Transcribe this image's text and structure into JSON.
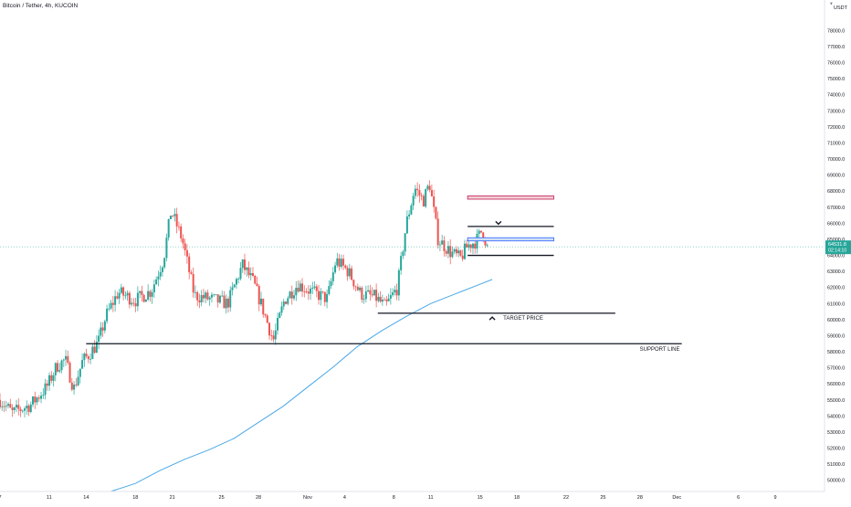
{
  "header": {
    "symbol_title": "Bitcoin / Tether, 4h, KUCOIN"
  },
  "currency": "USDT",
  "price_badge": {
    "price": "64531.8",
    "countdown": "02:14:10",
    "color": "#26a69a"
  },
  "colors": {
    "up_candle": "#26a69a",
    "down_candle": "#ef5350",
    "moving_average": "#4aa8e8",
    "drawing_line": "#131722",
    "resistance_box_fill": "#f4cfd3",
    "resistance_box_border": "#c2185b",
    "entry_box_fill": "#cfe0f6",
    "entry_box_border": "#2962ff"
  },
  "annotations": {
    "target_label": "TARGET PRICE",
    "support_label": "SUPPORT LINE"
  },
  "chart_data": {
    "type": "candlestick",
    "title": "Bitcoin / Tether, 4h, KUCOIN",
    "ylabel": "USDT",
    "ylim": [
      49300,
      79900
    ],
    "y_ticks": [
      50000,
      51000,
      52000,
      53000,
      54000,
      55000,
      56000,
      57000,
      58000,
      59000,
      60000,
      61000,
      62000,
      63000,
      64000,
      65000,
      66000,
      67000,
      68000,
      69000,
      70000,
      71000,
      72000,
      73000,
      74000,
      75000,
      76000,
      77000,
      78000
    ],
    "x_ticks": [
      "7",
      "11",
      "14",
      "18",
      "21",
      "25",
      "28",
      "Nov",
      "4",
      "8",
      "11",
      "15",
      "18",
      "22",
      "25",
      "28",
      "Dec",
      "6",
      "9"
    ],
    "x_tick_days": [
      7,
      11,
      14,
      18,
      21,
      25,
      28,
      32,
      35,
      39,
      42,
      46,
      49,
      53,
      56,
      59,
      62,
      67,
      70
    ],
    "x_range_days": [
      7,
      74
    ],
    "price_series_anchors": [
      {
        "day": 7.0,
        "price": 55000
      },
      {
        "day": 8.0,
        "price": 54200
      },
      {
        "day": 9.5,
        "price": 54700
      },
      {
        "day": 10.8,
        "price": 55800
      },
      {
        "day": 11.6,
        "price": 57100
      },
      {
        "day": 12.3,
        "price": 57500
      },
      {
        "day": 13.0,
        "price": 55700
      },
      {
        "day": 13.7,
        "price": 57400
      },
      {
        "day": 14.2,
        "price": 57800
      },
      {
        "day": 15.0,
        "price": 58600
      },
      {
        "day": 15.6,
        "price": 60200
      },
      {
        "day": 16.6,
        "price": 61700
      },
      {
        "day": 18.0,
        "price": 61200
      },
      {
        "day": 19.3,
        "price": 61800
      },
      {
        "day": 20.3,
        "price": 63800
      },
      {
        "day": 20.9,
        "price": 66800
      },
      {
        "day": 21.8,
        "price": 65000
      },
      {
        "day": 22.8,
        "price": 61500
      },
      {
        "day": 24.0,
        "price": 61300
      },
      {
        "day": 25.5,
        "price": 61000
      },
      {
        "day": 26.7,
        "price": 63400
      },
      {
        "day": 27.6,
        "price": 62300
      },
      {
        "day": 28.3,
        "price": 60800
      },
      {
        "day": 29.2,
        "price": 58700
      },
      {
        "day": 30.1,
        "price": 61200
      },
      {
        "day": 31.2,
        "price": 62200
      },
      {
        "day": 32.4,
        "price": 61700
      },
      {
        "day": 33.6,
        "price": 61300
      },
      {
        "day": 34.3,
        "price": 63700
      },
      {
        "day": 35.3,
        "price": 63000
      },
      {
        "day": 36.3,
        "price": 61600
      },
      {
        "day": 37.5,
        "price": 61400
      },
      {
        "day": 38.3,
        "price": 60800
      },
      {
        "day": 39.3,
        "price": 62000
      },
      {
        "day": 40.0,
        "price": 65900
      },
      {
        "day": 40.7,
        "price": 68200
      },
      {
        "day": 41.4,
        "price": 67400
      },
      {
        "day": 41.9,
        "price": 68500
      },
      {
        "day": 42.6,
        "price": 65000
      },
      {
        "day": 43.6,
        "price": 64200
      },
      {
        "day": 44.4,
        "price": 63800
      },
      {
        "day": 45.0,
        "price": 64600
      },
      {
        "day": 45.7,
        "price": 64900
      },
      {
        "day": 46.2,
        "price": 65600
      },
      {
        "day": 46.6,
        "price": 64500
      }
    ],
    "candle_count": 238,
    "moving_average": [
      {
        "day": 16.0,
        "price": 49300
      },
      {
        "day": 18.0,
        "price": 49800
      },
      {
        "day": 20.0,
        "price": 50600
      },
      {
        "day": 22.0,
        "price": 51300
      },
      {
        "day": 24.0,
        "price": 51900
      },
      {
        "day": 26.0,
        "price": 52600
      },
      {
        "day": 28.0,
        "price": 53600
      },
      {
        "day": 30.0,
        "price": 54600
      },
      {
        "day": 32.0,
        "price": 55800
      },
      {
        "day": 34.0,
        "price": 57000
      },
      {
        "day": 36.0,
        "price": 58300
      },
      {
        "day": 38.0,
        "price": 59300
      },
      {
        "day": 40.0,
        "price": 60200
      },
      {
        "day": 42.0,
        "price": 61000
      },
      {
        "day": 44.0,
        "price": 61600
      },
      {
        "day": 46.0,
        "price": 62200
      },
      {
        "day": 47.0,
        "price": 62500
      }
    ],
    "drawings": {
      "support_line": {
        "price": 58500,
        "from_day": 14.0,
        "to_day": 62.4
      },
      "target_line": {
        "price": 60400,
        "from_day": 37.7,
        "to_day": 57.0
      },
      "upper_range_line": {
        "price": 65800,
        "from_day": 45.0,
        "to_day": 52.0
      },
      "lower_range_line": {
        "price": 64000,
        "from_day": 45.0,
        "to_day": 52.0
      },
      "resistance_box": {
        "price_high": 67700,
        "price_low": 67500,
        "from_day": 45.0,
        "to_day": 52.0
      },
      "entry_box": {
        "price_high": 65100,
        "price_low": 64900,
        "from_day": 45.0,
        "to_day": 52.0
      },
      "down_arrow": {
        "price": 66000,
        "day": 47.5
      },
      "up_arrow": {
        "price": 60100,
        "day": 47.0
      }
    },
    "last_price": 64531.8,
    "grid": false,
    "legend": "none"
  }
}
